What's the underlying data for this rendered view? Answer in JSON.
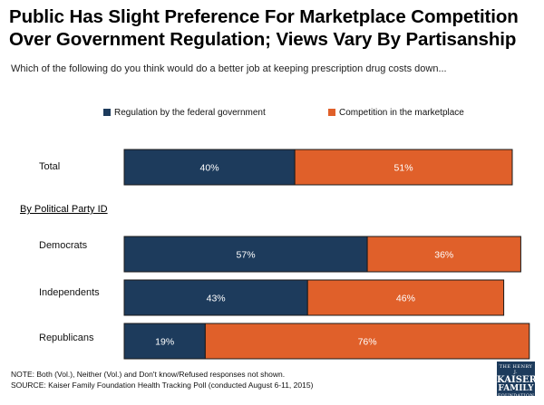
{
  "title": "Public Has Slight Preference For Marketplace Competition Over Government Regulation; Views Vary By Partisanship",
  "subtitle": "Which of the following do you think would do a better job at keeping prescription drug costs down...",
  "legend": {
    "series1": "Regulation by the federal government",
    "series2": "Competition in the marketplace"
  },
  "group_label": "By Political Party ID",
  "notes": {
    "line1": "NOTE: Both (Vol.), Neither (Vol.) and Don't know/Refused responses not shown.",
    "line2": "SOURCE: Kaiser Family Foundation Health Tracking Poll (conducted August 6-11, 2015)"
  },
  "logo": {
    "line1": "THE HENRY J.",
    "line2": "KAISER",
    "line3": "FAMILY",
    "line4": "FOUNDATION"
  },
  "colors": {
    "regulation": "#1d3b5c",
    "competition": "#e0602a"
  },
  "chart_data": {
    "type": "bar",
    "orientation": "horizontal",
    "stacked": true,
    "categories": [
      "Total",
      "Democrats",
      "Independents",
      "Republicans"
    ],
    "series": [
      {
        "name": "Regulation by the federal government",
        "values": [
          40,
          57,
          43,
          19
        ],
        "labels": [
          "40%",
          "57%",
          "43%",
          "19%"
        ]
      },
      {
        "name": "Competition in the marketplace",
        "values": [
          51,
          36,
          46,
          76
        ],
        "labels": [
          "51%",
          "36%",
          "46%",
          "76%"
        ]
      }
    ],
    "xlim": [
      0,
      91
    ],
    "grid": false,
    "legend_position": "top"
  }
}
